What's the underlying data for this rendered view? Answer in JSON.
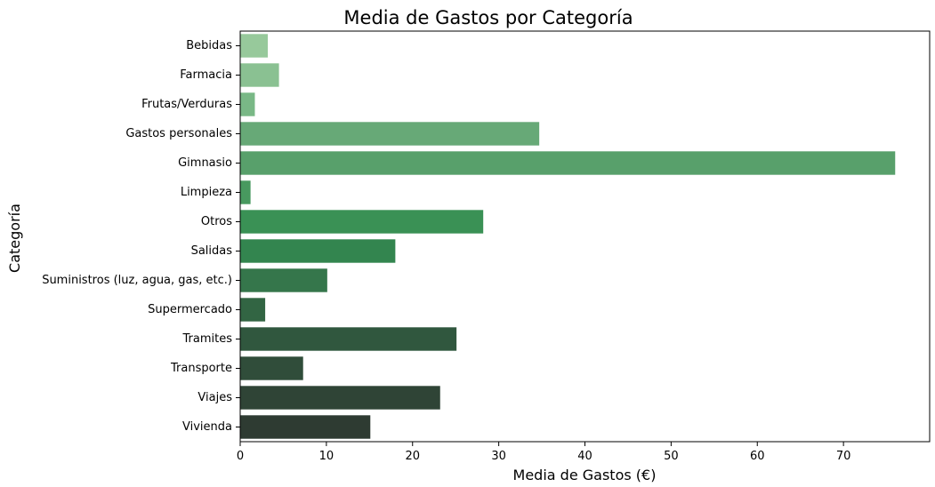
{
  "chart_data": {
    "type": "bar",
    "orientation": "horizontal",
    "title": "Media de Gastos por Categoría",
    "xlabel": "Media de Gastos (€)",
    "ylabel": "Categoría",
    "categories": [
      "Bebidas",
      "Farmacia",
      "Frutas/Verduras",
      "Gastos personales",
      "Gimnasio",
      "Limpieza",
      "Otros",
      "Salidas",
      "Suministros (luz, agua, gas, etc.)",
      "Supermercado",
      "Tramites",
      "Transporte",
      "Viajes",
      "Vivienda"
    ],
    "values": [
      3.2,
      4.5,
      1.7,
      34.7,
      76.0,
      1.2,
      28.2,
      18.0,
      10.1,
      2.9,
      25.1,
      7.3,
      23.2,
      15.1
    ],
    "xlim": [
      0,
      80
    ],
    "xticks": [
      0,
      10,
      20,
      30,
      40,
      50,
      60,
      70
    ],
    "grid": false,
    "colors": [
      "#97c99b",
      "#8ac192",
      "#79b886",
      "#67a977",
      "#58a06b",
      "#48995f",
      "#3a9155",
      "#33854f",
      "#35764b",
      "#326543",
      "#30573e",
      "#304d3a",
      "#2f4436",
      "#2e3b32"
    ]
  }
}
